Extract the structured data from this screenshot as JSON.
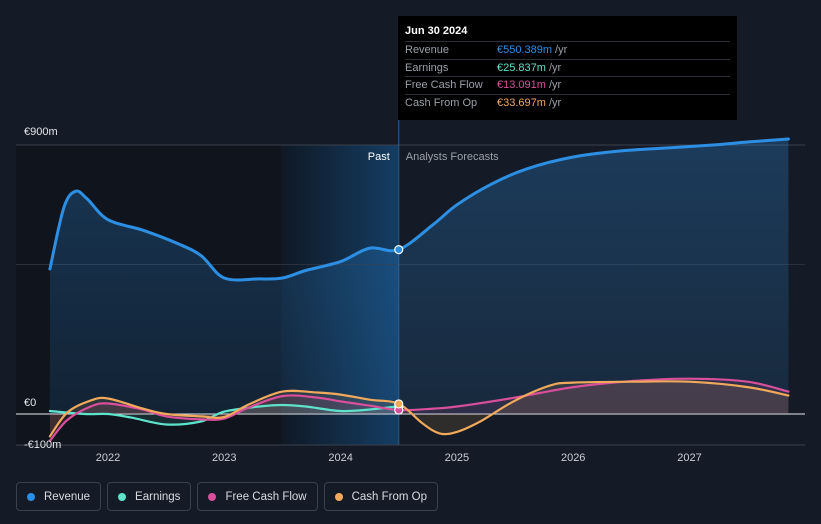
{
  "chart_data": {
    "type": "line",
    "title": "",
    "xlabel": "",
    "ylabel": "",
    "ylim": [
      -100,
      900
    ],
    "y_tick_labels": [
      "€900m",
      "€0",
      "-€100m"
    ],
    "x_ticks": [
      2022,
      2023,
      2024,
      2025,
      2026,
      2027
    ],
    "x_tick_labels": [
      "2022",
      "2023",
      "2024",
      "2025",
      "2026",
      "2027"
    ],
    "past_label": "Past",
    "forecast_label": "Analysts Forecasts",
    "past_forecast_boundary": 2024.5,
    "series": [
      {
        "name": "Revenue",
        "color": "#2d8fe3",
        "x": [
          2021.5,
          2021.62,
          2021.72,
          2021.82,
          2022.0,
          2022.3,
          2022.6,
          2022.8,
          2023.0,
          2023.3,
          2023.5,
          2023.7,
          2024.0,
          2024.25,
          2024.5,
          2024.8,
          2025.0,
          2025.3,
          2025.6,
          2026.0,
          2026.4,
          2026.8,
          2027.2,
          2027.5,
          2027.85
        ],
        "y": [
          485,
          690,
          745,
          720,
          650,
          615,
          570,
          530,
          455,
          452,
          455,
          480,
          510,
          555,
          550,
          635,
          700,
          770,
          820,
          860,
          880,
          890,
          900,
          910,
          920
        ]
      },
      {
        "name": "Earnings",
        "color": "#5ee3cb",
        "x": [
          2021.5,
          2021.8,
          2022.0,
          2022.2,
          2022.5,
          2022.8,
          2023.0,
          2023.3,
          2023.5,
          2023.7,
          2024.0,
          2024.25,
          2024.5
        ],
        "y": [
          10,
          0,
          0,
          -12,
          -35,
          -25,
          8,
          25,
          30,
          25,
          10,
          15,
          25.8
        ]
      },
      {
        "name": "Free Cash Flow",
        "color": "#d94f9c",
        "x": [
          2021.5,
          2021.65,
          2021.85,
          2022.0,
          2022.3,
          2022.5,
          2022.8,
          2023.0,
          2023.2,
          2023.5,
          2023.8,
          2024.0,
          2024.25,
          2024.5,
          2024.8,
          2025.0,
          2025.5,
          2026.0,
          2026.5,
          2027.0,
          2027.5,
          2027.85
        ],
        "y": [
          -90,
          -20,
          25,
          35,
          15,
          -8,
          -18,
          -15,
          20,
          60,
          55,
          42,
          28,
          13.1,
          18,
          25,
          55,
          90,
          110,
          118,
          108,
          75
        ]
      },
      {
        "name": "Cash From Op",
        "color": "#f0a95b",
        "x": [
          2021.5,
          2021.65,
          2021.85,
          2022.0,
          2022.3,
          2022.5,
          2022.8,
          2023.0,
          2023.2,
          2023.5,
          2023.8,
          2024.0,
          2024.25,
          2024.5,
          2024.7,
          2024.85,
          2025.0,
          2025.2,
          2025.5,
          2025.8,
          2026.0,
          2026.5,
          2027.0,
          2027.5,
          2027.85
        ],
        "y": [
          -75,
          5,
          45,
          52,
          18,
          0,
          -8,
          -10,
          30,
          75,
          72,
          65,
          48,
          33.7,
          -30,
          -65,
          -60,
          -25,
          45,
          95,
          105,
          108,
          108,
          90,
          62
        ]
      }
    ],
    "tooltip": {
      "date": "Jun 30 2024",
      "rows": [
        {
          "label": "Revenue",
          "value": "€550.389m",
          "unit": "/yr",
          "color": "#2d8fe3"
        },
        {
          "label": "Earnings",
          "value": "€25.837m",
          "unit": "/yr",
          "color": "#5ee3cb"
        },
        {
          "label": "Free Cash Flow",
          "value": "€13.091m",
          "unit": "/yr",
          "color": "#d94f9c"
        },
        {
          "label": "Cash From Op",
          "value": "€33.697m",
          "unit": "/yr",
          "color": "#f0a95b"
        }
      ]
    },
    "legend": [
      {
        "label": "Revenue",
        "color": "#2d8fe3"
      },
      {
        "label": "Earnings",
        "color": "#5ee3cb"
      },
      {
        "label": "Free Cash Flow",
        "color": "#d94f9c"
      },
      {
        "label": "Cash From Op",
        "color": "#f0a95b"
      }
    ]
  }
}
